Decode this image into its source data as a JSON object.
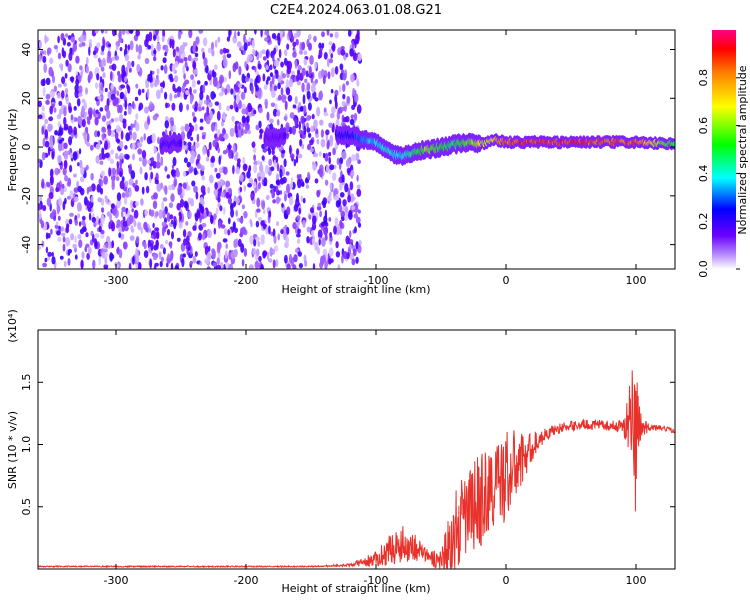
{
  "title": "C2E4.2024.063.01.08.G21",
  "chart_data": [
    {
      "type": "heatmap",
      "xlabel": "Height of straight line (km)",
      "ylabel": "Frequency (Hz)",
      "xlim": [
        -360,
        130
      ],
      "ylim": [
        -50,
        48
      ],
      "xticks": [
        -300,
        -200,
        -100,
        0,
        100
      ],
      "yticks": [
        -40,
        -20,
        0,
        20,
        40
      ],
      "grid": false,
      "colorbar": {
        "label": "Normalized spectral amplitude",
        "ticks": [
          0.0,
          0.2,
          0.4,
          0.6,
          0.8
        ],
        "range": [
          0,
          1
        ]
      },
      "noise_region_x": [
        -360,
        -120
      ],
      "ridge": {
        "x": [
          -265,
          -180,
          -120,
          -110,
          -100,
          -90,
          -80,
          -70,
          -60,
          -50,
          -40,
          -30,
          -20,
          -10,
          0,
          20,
          40,
          60,
          80,
          100,
          130
        ],
        "y": [
          1,
          4,
          5,
          3,
          2,
          -2,
          -4,
          -2,
          -1,
          0,
          1,
          2,
          1,
          3,
          2,
          2,
          2,
          2,
          2,
          2,
          1
        ],
        "amplitude": [
          0.2,
          0.15,
          0.25,
          0.35,
          0.4,
          0.45,
          0.4,
          0.5,
          0.65,
          0.55,
          0.5,
          0.6,
          0.7,
          0.75,
          0.9,
          0.95,
          0.95,
          0.95,
          0.9,
          0.92,
          0.5
        ]
      }
    },
    {
      "type": "line",
      "xlabel": "Height of straight line (km)",
      "ylabel": "SNR (10 * v/v)",
      "yscale_label": "(x10⁴)",
      "xlim": [
        -360,
        130
      ],
      "ylim": [
        0,
        1.92
      ],
      "xticks": [
        -300,
        -200,
        -100,
        0,
        100
      ],
      "yticks": [
        0.5,
        1.0,
        1.5
      ],
      "grid": false,
      "series": [
        {
          "color": "#e8312b",
          "x": [
            -360,
            -300,
            -250,
            -200,
            -150,
            -120,
            -100,
            -90,
            -80,
            -70,
            -60,
            -50,
            -40,
            -30,
            -20,
            -10,
            -5,
            0,
            10,
            20,
            30,
            40,
            50,
            60,
            70,
            80,
            90,
            95,
            100,
            105,
            110,
            120,
            130
          ],
          "y": [
            0.02,
            0.02,
            0.02,
            0.02,
            0.02,
            0.03,
            0.08,
            0.15,
            0.2,
            0.18,
            0.1,
            0.06,
            0.25,
            0.45,
            0.55,
            0.65,
            0.7,
            0.75,
            0.85,
            0.98,
            1.08,
            1.13,
            1.15,
            1.16,
            1.16,
            1.15,
            1.15,
            1.18,
            1.12,
            1.13,
            1.14,
            1.13,
            1.11
          ],
          "noise_amplitude": [
            0.0,
            0.0,
            0.0,
            0.0,
            0.0,
            0.01,
            0.06,
            0.12,
            0.15,
            0.12,
            0.05,
            0.12,
            0.35,
            0.35,
            0.4,
            0.35,
            0.35,
            0.4,
            0.25,
            0.12,
            0.05,
            0.04,
            0.04,
            0.04,
            0.04,
            0.04,
            0.05,
            0.35,
            0.7,
            0.08,
            0.03,
            0.02,
            0.02
          ]
        }
      ]
    }
  ]
}
